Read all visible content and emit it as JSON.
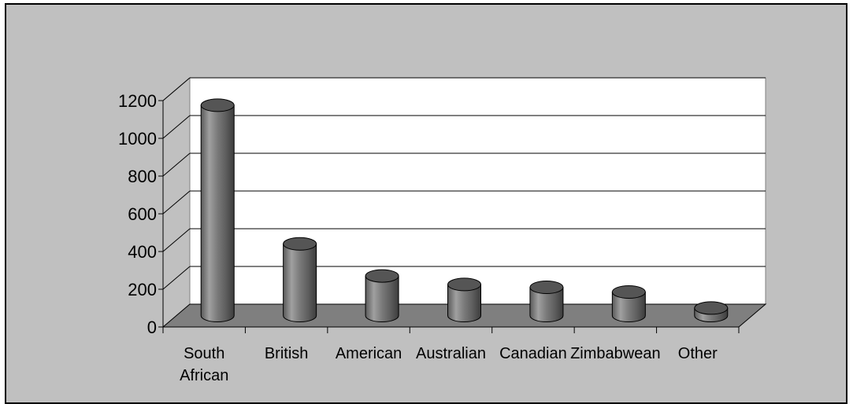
{
  "chart_data": {
    "type": "bar",
    "style": "3d-cylinder",
    "title": "",
    "xlabel": "",
    "ylabel": "",
    "categories": [
      [
        "South",
        "African"
      ],
      [
        "British"
      ],
      [
        "American"
      ],
      [
        "Australian"
      ],
      [
        "Canadian"
      ],
      [
        "Zimbabwean"
      ],
      [
        "Other"
      ]
    ],
    "values": [
      1115,
      380,
      210,
      165,
      150,
      125,
      40
    ],
    "ylim": [
      0,
      1200
    ],
    "yticks": [
      "0",
      "200",
      "400",
      "600",
      "800",
      "1000",
      "1200"
    ],
    "grid": true,
    "legend": "none",
    "colors": {
      "background": "#c0c0c0",
      "back_wall": "#ffffff",
      "floor": "#7f7f7f",
      "bar": "#808080",
      "bar_top": "#555555",
      "gridline": "#000000"
    }
  }
}
